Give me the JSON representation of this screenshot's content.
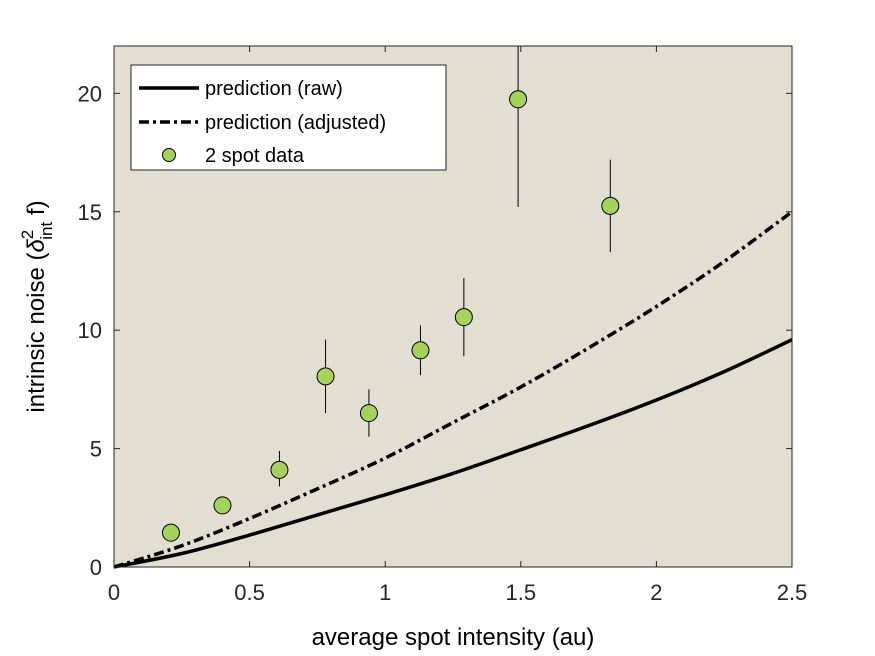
{
  "chart_data": {
    "type": "scatter",
    "xlabel": "average spot intensity (au)",
    "ylabel": "intrinsic noise (δ²int f)",
    "ylabel_parts": {
      "prefix": "intrinsic noise (",
      "symbol": "δ",
      "superscript": "2",
      "subscript": "int",
      "suffix": " f)"
    },
    "xlim": [
      0,
      2.5
    ],
    "ylim": [
      0,
      22
    ],
    "x_ticks": [
      0,
      0.5,
      1,
      1.5,
      2,
      2.5
    ],
    "x_tick_labels": [
      "0",
      "0.5",
      "1",
      "1.5",
      "2",
      "2.5"
    ],
    "y_ticks": [
      0,
      5,
      10,
      15,
      20
    ],
    "y_tick_labels": [
      "0",
      "5",
      "10",
      "15",
      "20"
    ],
    "grid": false,
    "legend_position": "top-left",
    "background_color": "#e3ded2",
    "marker_color": "#a6d15a",
    "series": [
      {
        "name": "prediction (raw)",
        "style": "solid",
        "x": [
          0,
          0.25,
          0.5,
          0.75,
          1,
          1.25,
          1.5,
          1.75,
          2,
          2.25,
          2.5
        ],
        "y": [
          0,
          0.57,
          1.35,
          2.2,
          3.05,
          3.95,
          4.95,
          5.97,
          7.05,
          8.25,
          9.6
        ]
      },
      {
        "name": "prediction (adjusted)",
        "style": "dashdot",
        "x": [
          0,
          0.25,
          0.5,
          0.75,
          1,
          1.25,
          1.5,
          1.75,
          2,
          2.25,
          2.5
        ],
        "y": [
          0,
          0.9,
          2.05,
          3.3,
          4.6,
          6.1,
          7.6,
          9.25,
          11.0,
          12.9,
          15.0
        ]
      },
      {
        "name": "2 spot data",
        "style": "marker",
        "points": [
          {
            "x": 0.21,
            "y": 1.45,
            "err_low": 1.45,
            "err_high": 1.45
          },
          {
            "x": 0.4,
            "y": 2.6,
            "err_low": 2.6,
            "err_high": 2.6
          },
          {
            "x": 0.61,
            "y": 4.1,
            "err_low": 3.4,
            "err_high": 4.9
          },
          {
            "x": 0.78,
            "y": 8.05,
            "err_low": 6.5,
            "err_high": 9.6
          },
          {
            "x": 0.94,
            "y": 6.5,
            "err_low": 5.5,
            "err_high": 7.5
          },
          {
            "x": 1.13,
            "y": 9.15,
            "err_low": 8.1,
            "err_high": 10.2
          },
          {
            "x": 1.29,
            "y": 10.55,
            "err_low": 8.9,
            "err_high": 12.2
          },
          {
            "x": 1.49,
            "y": 19.75,
            "err_low": 15.2,
            "err_high": 22
          },
          {
            "x": 1.83,
            "y": 15.25,
            "err_low": 13.3,
            "err_high": 17.2
          }
        ]
      }
    ]
  }
}
